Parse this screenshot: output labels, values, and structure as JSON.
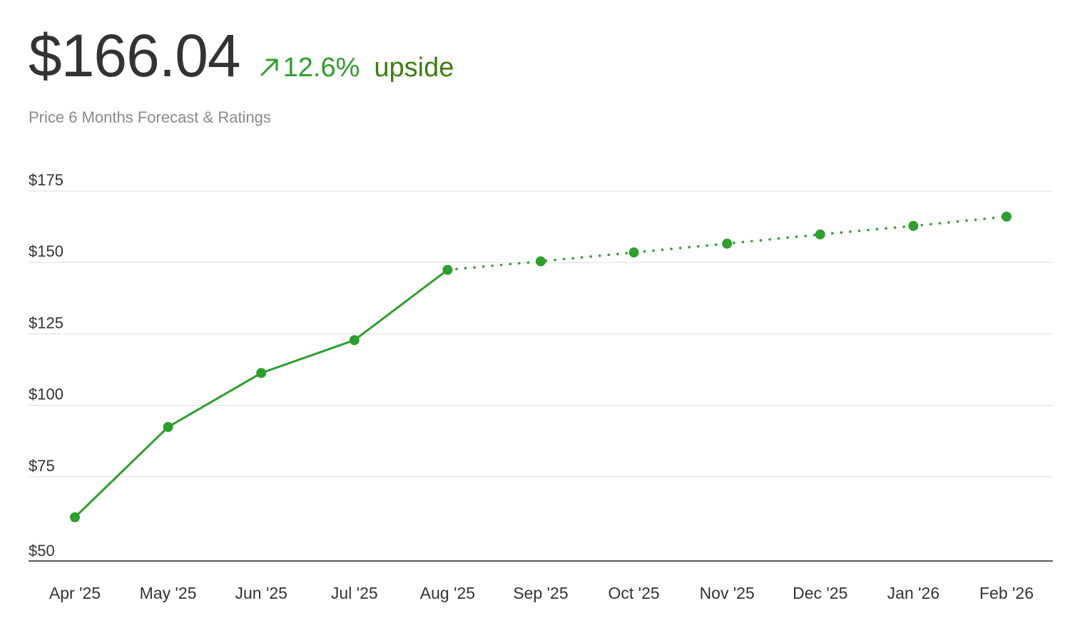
{
  "header": {
    "price": "$166.04",
    "change_pct": "12.6%",
    "change_word": "upside",
    "subtitle": "Price 6 Months Forecast & Ratings"
  },
  "colors": {
    "line": "#2e9e2e",
    "upside_text": "#3e7d12",
    "grid": "#dddddd",
    "axis": "#222222"
  },
  "icons": {
    "change": "arrow-up-right-icon"
  },
  "chart_data": {
    "type": "line",
    "categories": [
      "Apr '25",
      "May '25",
      "Jun '25",
      "Jul '25",
      "Aug '25",
      "Sep '25",
      "Oct '25",
      "Nov '25",
      "Dec '25",
      "Jan '26",
      "Feb '26"
    ],
    "series": [
      {
        "style": "solid",
        "values": [
          60.8,
          92.4,
          111.3,
          122.8,
          147.4,
          null,
          null,
          null,
          null,
          null,
          null
        ]
      },
      {
        "style": "dotted",
        "values": [
          null,
          null,
          null,
          null,
          147.4,
          150.4,
          153.5,
          156.6,
          159.8,
          162.8,
          166.04
        ]
      }
    ],
    "yticks": [
      "$175",
      "$150",
      "$125",
      "$100",
      "$75",
      "$50"
    ],
    "ytick_values": [
      175,
      150,
      125,
      100,
      75,
      50
    ],
    "ylim": [
      45.5,
      175
    ],
    "grid": true,
    "title": "",
    "xlabel": "",
    "ylabel": ""
  }
}
